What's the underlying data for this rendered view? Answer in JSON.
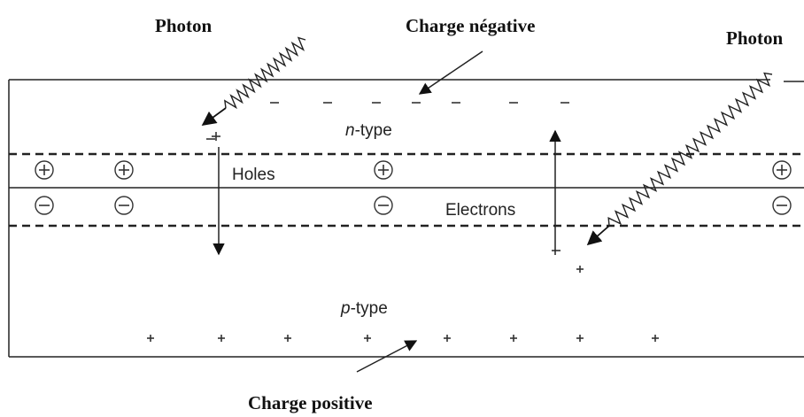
{
  "labels": {
    "photon_left": "Photon",
    "charge_negative": "Charge négative",
    "photon_right": "Photon",
    "n_type": {
      "prefix": "n",
      "suffix": "-type"
    },
    "holes": "Holes",
    "electrons": "Electrons",
    "p_type": {
      "prefix": "p",
      "suffix": "-type"
    },
    "charge_positive": "Charge positive"
  }
}
